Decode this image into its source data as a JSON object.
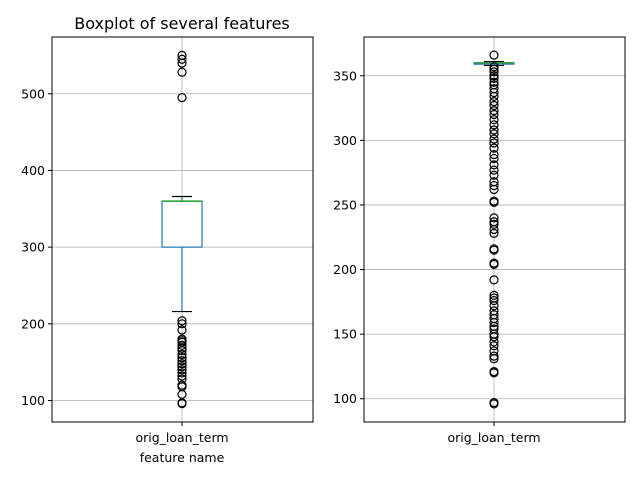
{
  "chart_data": [
    {
      "type": "boxplot",
      "title": "Boxplot of several features",
      "xlabel": "feature name",
      "ylabel": "",
      "categories": [
        "orig_loan_term"
      ],
      "ylim": [
        72,
        574
      ],
      "yticks": [
        100,
        200,
        300,
        400,
        500
      ],
      "grid": true,
      "box": {
        "q1": 300,
        "median": 360,
        "q3": 360,
        "whisker_low": 216,
        "whisker_high": 366
      },
      "outliers": [
        550,
        545,
        540,
        528,
        495,
        204,
        200,
        192,
        180,
        178,
        176,
        172,
        168,
        165,
        160,
        156,
        152,
        148,
        144,
        140,
        136,
        132,
        128,
        120,
        118,
        108,
        97,
        96
      ],
      "colors": {
        "box": "#1f77b4",
        "median": "#2ca02c",
        "grid": "#b0b0b0"
      }
    },
    {
      "type": "boxplot",
      "title": "",
      "xlabel": "",
      "ylabel": "",
      "categories": [
        "orig_loan_term"
      ],
      "ylim": [
        82,
        380
      ],
      "yticks": [
        100,
        150,
        200,
        250,
        300,
        350
      ],
      "grid": true,
      "box": {
        "q1": 359,
        "median": 360,
        "q3": 360,
        "whisker_low": 358,
        "whisker_high": 361
      },
      "outliers": [
        366,
        357,
        355,
        353,
        350,
        348,
        345,
        343,
        340,
        337,
        334,
        330,
        327,
        323,
        320,
        316,
        312,
        308,
        305,
        301,
        298,
        294,
        289,
        286,
        281,
        277,
        273,
        268,
        265,
        262,
        253,
        252,
        240,
        237,
        235,
        231,
        228,
        216,
        215,
        205,
        204,
        192,
        180,
        178,
        176,
        172,
        168,
        165,
        162,
        159,
        156,
        154,
        150,
        148,
        144,
        141,
        137,
        133,
        131,
        121,
        120,
        97,
        96
      ],
      "colors": {
        "box": "#1f77b4",
        "median": "#2ca02c",
        "grid": "#b0b0b0"
      }
    }
  ]
}
